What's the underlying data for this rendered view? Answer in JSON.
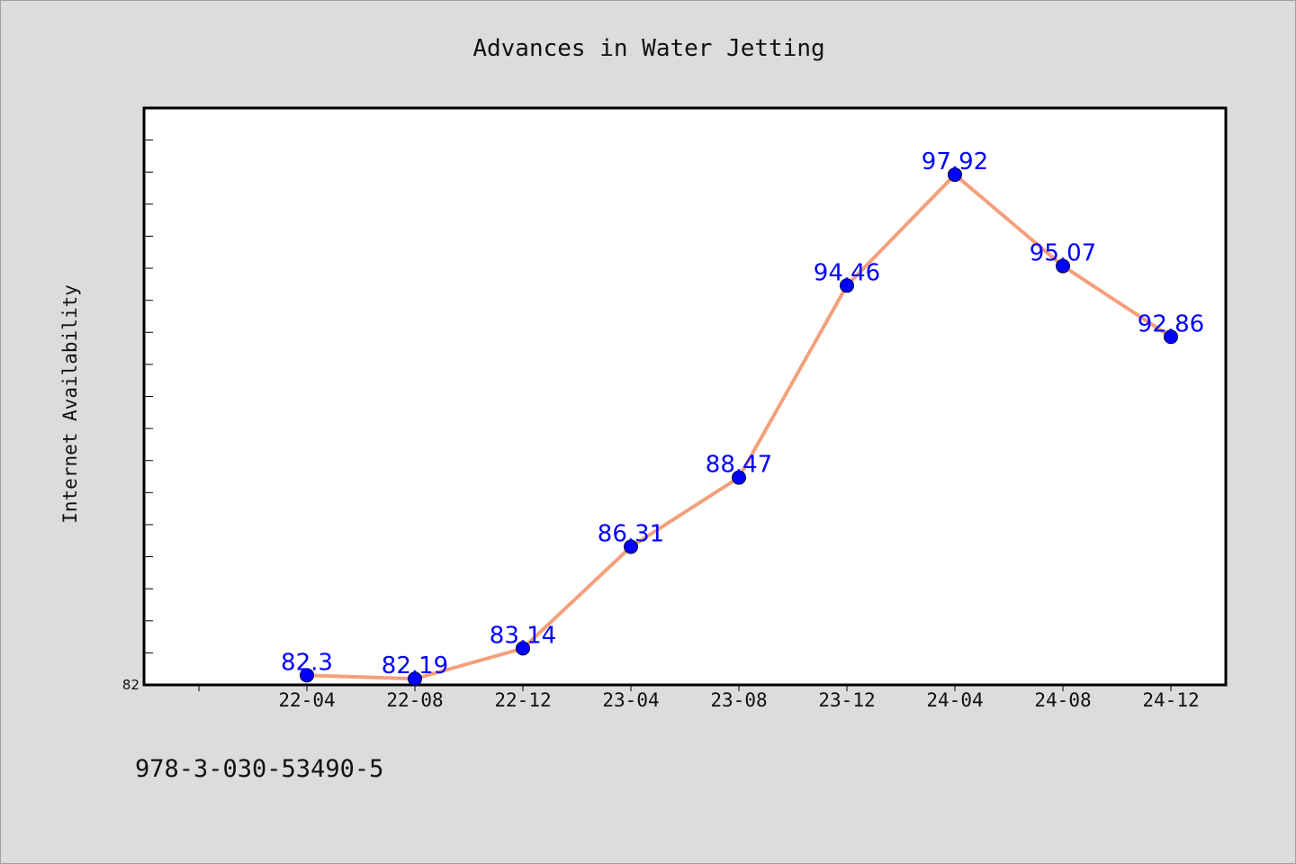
{
  "chart_data": {
    "type": "line",
    "title": "Advances in Water Jetting",
    "xlabel": "",
    "ylabel": "Internet Availability",
    "categories": [
      "22-04",
      "22-08",
      "22-12",
      "23-04",
      "23-08",
      "23-12",
      "24-04",
      "24-08",
      "24-12"
    ],
    "series": [
      {
        "values": [
          82.3,
          82.19,
          83.14,
          86.31,
          88.47,
          94.46,
          97.92,
          95.07,
          92.86
        ],
        "data_labels": [
          "82.3",
          "82.19",
          "83.14",
          "86.31",
          "88.47",
          "94.46",
          "97.92",
          "95.07",
          "92.86"
        ],
        "line_color": "#f4a07c",
        "marker_color": "#0000ff"
      }
    ],
    "ylim": [
      82,
      100
    ],
    "yticks_labeled": [
      "82"
    ],
    "grid": false,
    "legend": "none"
  },
  "footnote": "978-3-030-53490-5",
  "colors": {
    "background": "#dcdcdc",
    "plot_background": "#ffffff",
    "axis": "#000000",
    "line": "#f4a07c",
    "marker": "#0000ff",
    "data_label": "#0000ff"
  }
}
